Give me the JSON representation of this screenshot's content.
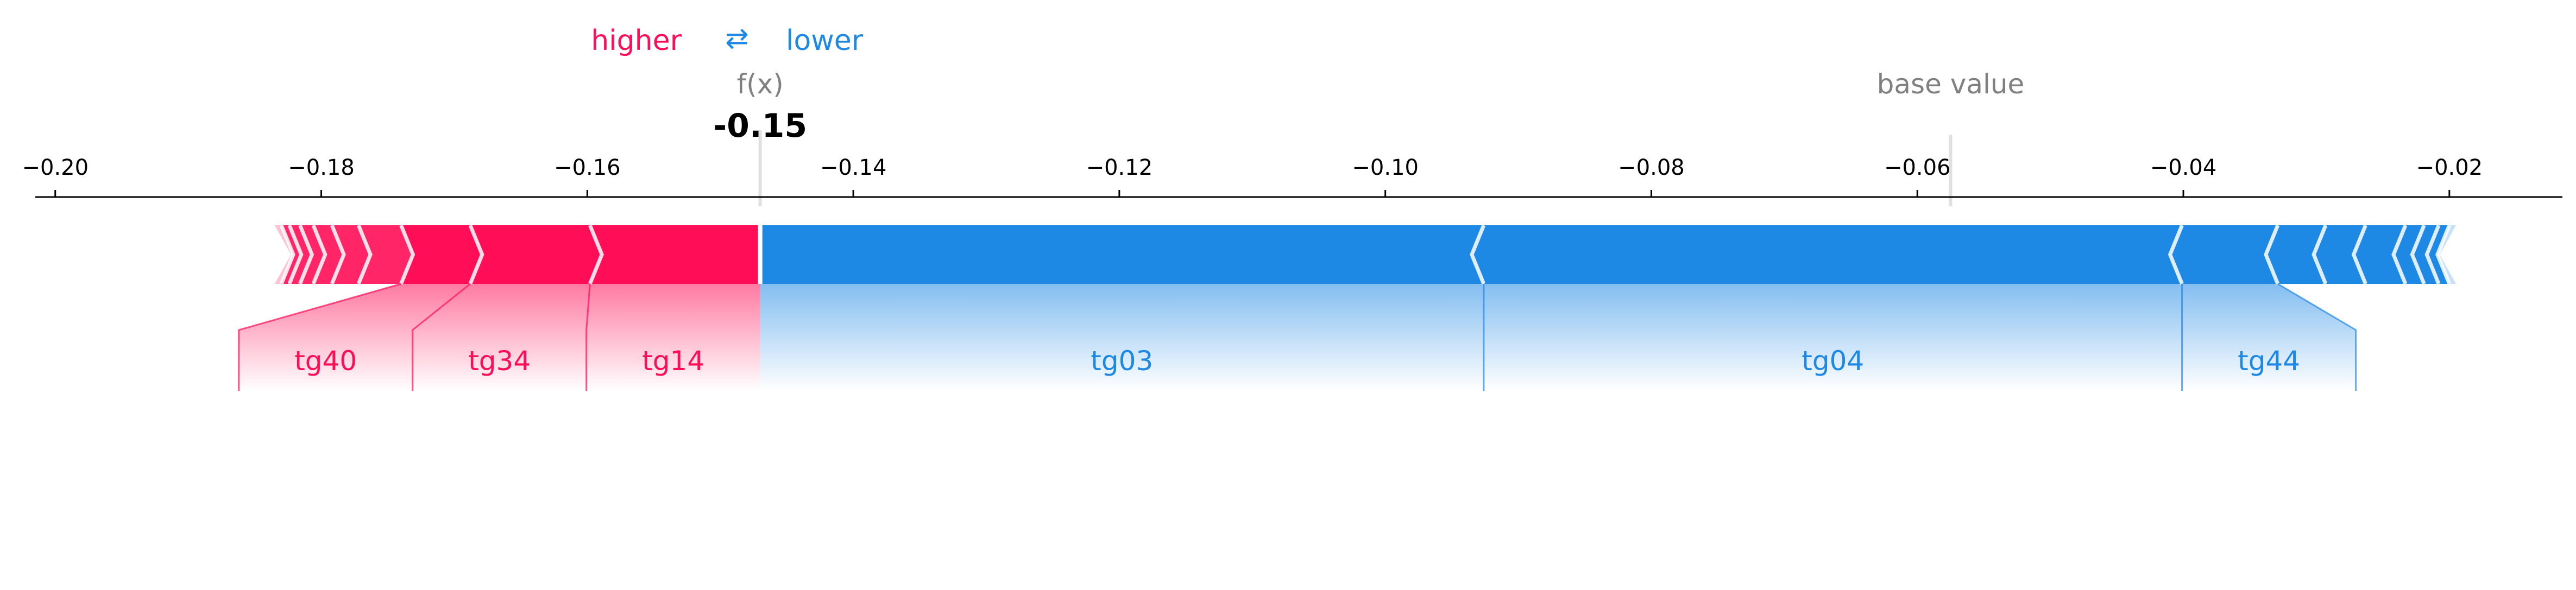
{
  "legend": {
    "higher": "higher",
    "lower": "lower",
    "arrow": "⇄"
  },
  "fx_label": "f(x)",
  "fx_text": "-0.15",
  "base_label": "base value",
  "colors": {
    "positive": "#ff0d57",
    "negative": "#1e88e5",
    "text_grey": "#808080"
  },
  "chart_data": {
    "type": "force",
    "output_value": -0.147,
    "base_value": -0.0575,
    "xlim": [
      -0.2015,
      -0.0115
    ],
    "ticks": [
      -0.2,
      -0.18,
      -0.16,
      -0.14,
      -0.12,
      -0.1,
      -0.08,
      -0.06,
      -0.04,
      -0.02
    ],
    "tick_labels": [
      "−0.20",
      "−0.18",
      "−0.16",
      "−0.14",
      "−0.12",
      "−0.10",
      "−0.08",
      "−0.06",
      "−0.04",
      "−0.02"
    ],
    "positive_features": [
      {
        "name": "tg14",
        "value": 0.0128
      },
      {
        "name": "tg34",
        "value": 0.009
      },
      {
        "name": "tg40",
        "value": 0.0052
      },
      {
        "name": "",
        "value": 0.0032
      },
      {
        "name": "",
        "value": 0.002
      },
      {
        "name": "",
        "value": 0.0014
      },
      {
        "name": "",
        "value": 0.001
      },
      {
        "name": "",
        "value": 0.0008
      },
      {
        "name": "",
        "value": 0.0006
      },
      {
        "name": "",
        "value": 0.0005
      }
    ],
    "negative_features": [
      {
        "name": "tg03",
        "value": -0.0544
      },
      {
        "name": "tg04",
        "value": -0.0525
      },
      {
        "name": "tg44",
        "value": -0.0072
      },
      {
        "name": "",
        "value": -0.0036
      },
      {
        "name": "",
        "value": -0.003
      },
      {
        "name": "",
        "value": -0.003
      },
      {
        "name": "",
        "value": -0.0014
      },
      {
        "name": "",
        "value": -0.0011
      },
      {
        "name": "",
        "value": -0.0008
      },
      {
        "name": "",
        "value": -0.0005
      }
    ]
  }
}
